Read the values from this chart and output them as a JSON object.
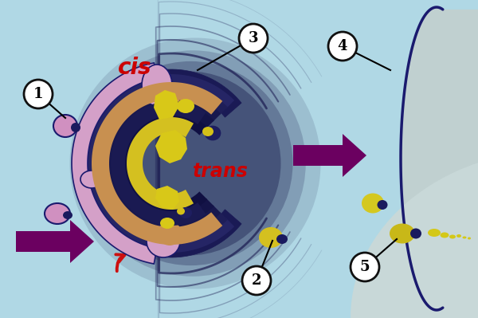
{
  "bg_color": "#b0d8e5",
  "arrow_color": "#6b0060",
  "red_arrow_color": "#cc1010",
  "label_circle_color": "#ffffff",
  "label_circle_border": "#111111",
  "cis_text_color": "#cc0000",
  "trans_text_color": "#cc0000"
}
